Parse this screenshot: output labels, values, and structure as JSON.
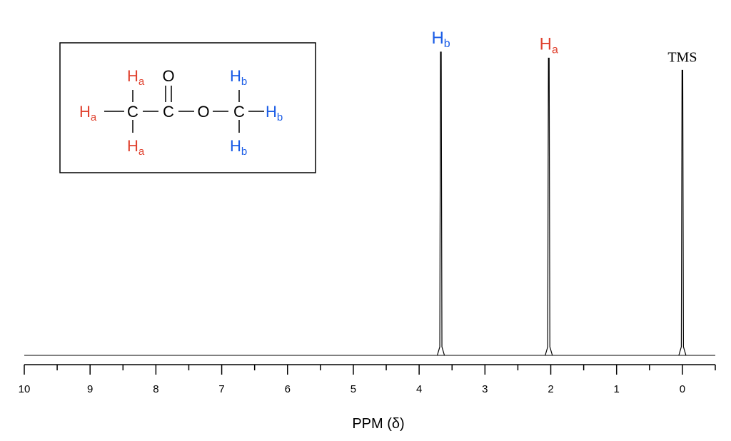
{
  "colors": {
    "a": "#e0422f",
    "b": "#1a5ce6",
    "ink": "#000000"
  },
  "chart_data": {
    "type": "line",
    "xlabel": "PPM (δ)",
    "xlim": [
      10,
      -0.5
    ],
    "x_reversed": true,
    "major_ticks": [
      10,
      9,
      8,
      7,
      6,
      5,
      4,
      3,
      2,
      1,
      0
    ],
    "tick_labels": [
      "10",
      "9",
      "8",
      "7",
      "6",
      "5",
      "4",
      "3",
      "2",
      "1",
      "0"
    ],
    "minor_tick_step": 0.5,
    "peaks": [
      {
        "ppm": 3.67,
        "relative_height": 1.0,
        "label": "H",
        "subscript": "b",
        "label_color": "b"
      },
      {
        "ppm": 2.03,
        "relative_height": 0.98,
        "label": "H",
        "subscript": "a",
        "label_color": "a"
      },
      {
        "ppm": 0.0,
        "relative_height": 0.94,
        "label": "TMS",
        "subscript": "",
        "label_color": "ink"
      }
    ],
    "grid": false,
    "legend": "none"
  },
  "structure": {
    "carbon": "C",
    "oxygen": "O",
    "hydrogen": "H",
    "sub_a": "a",
    "sub_b": "b"
  }
}
